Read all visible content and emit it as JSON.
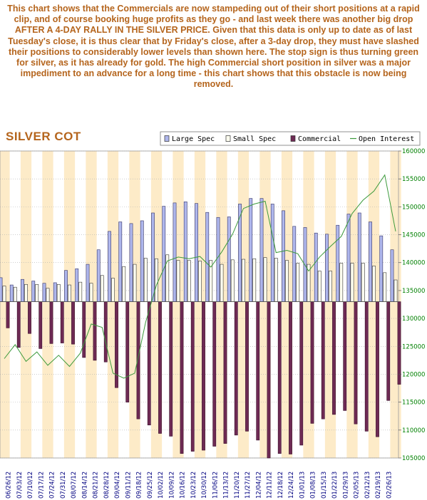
{
  "commentary": "This chart shows that the Commercials are now stampeding out of their short positions at a rapid clip, and of course booking huge profits as they go - and last week there was another big drop AFTER A 4-DAY RALLY IN THE SILVER PRICE. Given that this data is only up to date as of last Tuesday's close, it is thus clear that by Friday's close, after a 3-day drop, they must have slashed their positions to considerably lower levels than shown here. The stop sign is thus turning green for silver, as it has already for gold. The high Commercial short position in silver was a major impediment to an advance for a long time - this chart shows that this obstacle is now being removed.",
  "chart_data": {
    "type": "bar",
    "title": "SILVER COT",
    "xlabel": "",
    "ylabel": "",
    "ylim": [
      105000,
      160000
    ],
    "yticks": [
      105000,
      110000,
      115000,
      120000,
      125000,
      130000,
      135000,
      140000,
      145000,
      150000,
      155000,
      160000
    ],
    "zero_line": 133000,
    "grid": true,
    "legend_position": "top-right",
    "colors": {
      "large_spec": "#aeb6ec",
      "small_spec": "#fffff0",
      "commercial": "#6e2a54",
      "open_interest": "#3c9a3c",
      "band": "#fdebc8",
      "tick": "#008000",
      "date": "#000080",
      "title": "#b5651d"
    },
    "legend": [
      {
        "label": "Large Spec",
        "kind": "box",
        "color": "#aeb6ec"
      },
      {
        "label": "Small Spec",
        "kind": "box",
        "color": "#fffff0"
      },
      {
        "label": "Commercial",
        "kind": "box",
        "color": "#6e2a54"
      },
      {
        "label": "Open Interest",
        "kind": "line",
        "color": "#3c9a3c"
      }
    ],
    "categories": [
      "06/19/12",
      "06/26/12",
      "07/03/12",
      "07/10/12",
      "07/17/12",
      "07/24/12",
      "07/31/12",
      "08/07/12",
      "08/14/12",
      "08/21/12",
      "08/28/12",
      "09/04/12",
      "09/11/12",
      "09/18/12",
      "09/25/12",
      "10/02/12",
      "10/09/12",
      "10/16/12",
      "10/23/12",
      "10/30/12",
      "11/06/12",
      "11/13/12",
      "11/20/12",
      "11/27/12",
      "12/04/12",
      "12/11/12",
      "12/18/12",
      "12/24/12",
      "12/31/12",
      "01/08/13",
      "01/15/13",
      "01/22/13",
      "01/29/13",
      "02/05/13",
      "02/12/13",
      "02/19/13",
      "02/26/13"
    ],
    "x_labels": [
      "06/26/12",
      "07/03/12",
      "07/10/12",
      "07/17/12",
      "07/24/12",
      "07/31/12",
      "08/07/12",
      "08/14/12",
      "08/21/12",
      "08/28/12",
      "09/04/12",
      "09/11/12",
      "09/18/12",
      "09/25/12",
      "10/02/12",
      "10/09/12",
      "10/16/12",
      "10/23/12",
      "10/30/12",
      "11/06/12",
      "11/13/12",
      "11/20/12",
      "11/27/12",
      "12/04/12",
      "12/11/12",
      "12/18/12",
      "12/24/12",
      "01/01/13",
      "01/08/13",
      "01/15/13",
      "01/22/13",
      "01/29/13",
      "02/05/13",
      "02/12/13",
      "02/19/13",
      "02/26/13"
    ],
    "series": [
      {
        "name": "Large Spec",
        "values": [
          137300,
          136000,
          137000,
          136700,
          136300,
          136400,
          138600,
          138900,
          139700,
          142300,
          145600,
          147300,
          147000,
          147500,
          148900,
          150100,
          150700,
          150900,
          150600,
          149000,
          148100,
          148200,
          150500,
          151500,
          151500,
          150500,
          149300,
          146500,
          146300,
          145300,
          145100,
          146700,
          148700,
          148900,
          147300,
          144800,
          142300
        ]
      },
      {
        "name": "Small Spec",
        "values": [
          135800,
          135600,
          136100,
          136100,
          135400,
          136100,
          136000,
          136500,
          136300,
          137700,
          137200,
          139300,
          139700,
          140800,
          140700,
          141400,
          140400,
          140400,
          140300,
          140400,
          139700,
          140500,
          140600,
          140700,
          140900,
          140800,
          140400,
          139900,
          139700,
          138500,
          138500,
          139900,
          139900,
          139900,
          139400,
          138200,
          136900
        ]
      },
      {
        "name": "Commercial",
        "values": [
          128300,
          124800,
          127300,
          124600,
          125500,
          125600,
          125400,
          123000,
          122500,
          122200,
          117600,
          115000,
          112000,
          110900,
          109400,
          108900,
          105800,
          106200,
          106400,
          107100,
          107600,
          109100,
          109800,
          108200,
          105000,
          105800,
          105700,
          107300,
          111200,
          112000,
          112800,
          113500,
          111100,
          109800,
          108800,
          115300,
          118200
        ]
      },
      {
        "name": "Open Interest",
        "values": [
          122800,
          125300,
          122300,
          124000,
          121600,
          123400,
          121400,
          123800,
          129000,
          128400,
          120200,
          119300,
          120200,
          129300,
          136000,
          140300,
          141000,
          140700,
          141100,
          139200,
          141900,
          145100,
          149700,
          150500,
          151000,
          141800,
          142200,
          141600,
          138500,
          141000,
          142900,
          144700,
          148800,
          151200,
          152800,
          155700,
          145600
        ]
      }
    ]
  }
}
